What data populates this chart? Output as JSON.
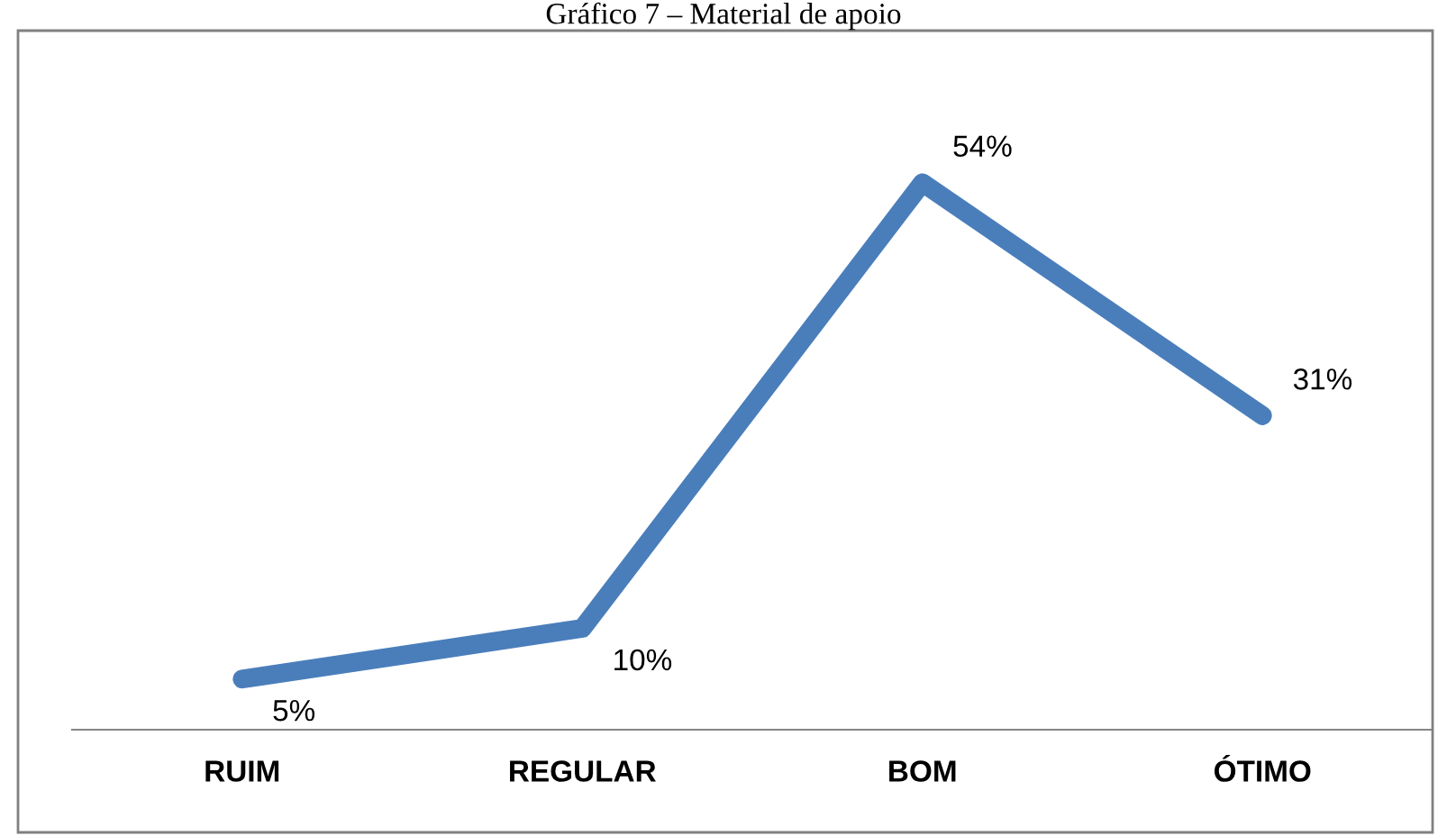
{
  "chart_data": {
    "type": "line",
    "title": "Gráfico 7 – Material de apoio",
    "categories": [
      "RUIM",
      "REGULAR",
      "BOM",
      "ÓTIMO"
    ],
    "series": [
      {
        "color": "#4a7ebb",
        "values": [
          5,
          10,
          54,
          31
        ],
        "value_labels": [
          "5%",
          "10%",
          "54%",
          "31%"
        ]
      }
    ],
    "tick_labels": "x",
    "grid": false,
    "legend": false,
    "marker": "none",
    "line_style": "solid"
  }
}
